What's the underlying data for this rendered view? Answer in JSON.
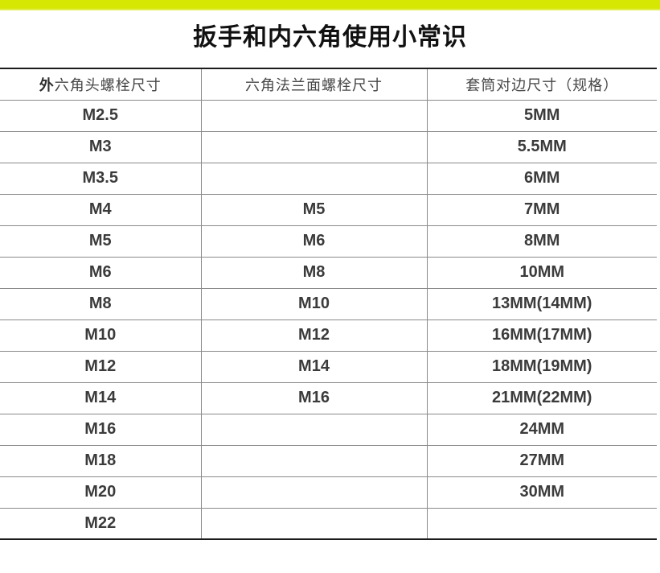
{
  "page": {
    "title": "扳手和内六角使用小常识",
    "accent_color": "#d6e704"
  },
  "table": {
    "headers": [
      "外六角头螺栓尺寸",
      "六角法兰面螺栓尺寸",
      "套筒对边尺寸（规格）"
    ],
    "rows": [
      [
        "M2.5",
        "",
        "5MM"
      ],
      [
        "M3",
        "",
        "5.5MM"
      ],
      [
        "M3.5",
        "",
        "6MM"
      ],
      [
        "M4",
        "M5",
        "7MM"
      ],
      [
        "M5",
        "M6",
        "8MM"
      ],
      [
        "M6",
        "M8",
        "10MM"
      ],
      [
        "M8",
        "M10",
        "13MM(14MM)"
      ],
      [
        "M10",
        "M12",
        "16MM(17MM)"
      ],
      [
        "M12",
        "M14",
        "18MM(19MM)"
      ],
      [
        "M14",
        "M16",
        "21MM(22MM)"
      ],
      [
        "M16",
        "",
        "24MM"
      ],
      [
        "M18",
        "",
        "27MM"
      ],
      [
        "M20",
        "",
        "30MM"
      ],
      [
        "M22",
        "",
        ""
      ]
    ]
  }
}
